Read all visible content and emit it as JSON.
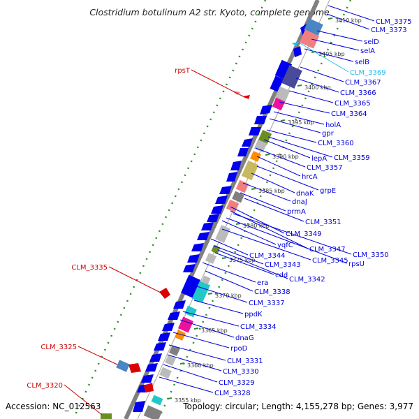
{
  "title": "Clostridium botulinum A2 str. Kyoto, complete genome",
  "footer": {
    "accession": "Accession: NC_012563",
    "topology": "Topology: circular; Length: 4,155,278 bp; Genes: 3,977"
  },
  "colors": {
    "forward_feature": "#0000ee",
    "reverse_feature": "#dd0000",
    "highlight_feature": "#22bbee",
    "backbone": "#808080",
    "tick": "#2e8b2e",
    "label_line_default": "#0000dd",
    "label_line_reverse": "#cc0000"
  },
  "ticks": [
    {
      "label": "3410 kbp"
    },
    {
      "label": "3405 kbp"
    },
    {
      "label": "3400 kbp"
    },
    {
      "label": "3395 kbp"
    },
    {
      "label": "3390 kbp"
    },
    {
      "label": "3385 kbp"
    },
    {
      "label": "3380 kbp"
    },
    {
      "label": "3375 kbp"
    },
    {
      "label": "3370 kbp"
    },
    {
      "label": "3365 kbp"
    },
    {
      "label": "3360 kbp"
    },
    {
      "label": "3355 kbp"
    }
  ],
  "gene_labels": [
    {
      "text": "CLM_3375",
      "strand": "forward"
    },
    {
      "text": "CLM_3373",
      "strand": "forward"
    },
    {
      "text": "selD",
      "strand": "forward"
    },
    {
      "text": "selA",
      "strand": "forward"
    },
    {
      "text": "selB",
      "strand": "forward"
    },
    {
      "text": "CLM_3369",
      "strand": "highlight"
    },
    {
      "text": "CLM_3367",
      "strand": "forward"
    },
    {
      "text": "CLM_3366",
      "strand": "forward"
    },
    {
      "text": "CLM_3365",
      "strand": "forward"
    },
    {
      "text": "CLM_3364",
      "strand": "forward"
    },
    {
      "text": "holA",
      "strand": "forward"
    },
    {
      "text": "gpr",
      "strand": "forward"
    },
    {
      "text": "CLM_3360",
      "strand": "forward"
    },
    {
      "text": "lepA",
      "strand": "forward"
    },
    {
      "text": "CLM_3359",
      "strand": "forward"
    },
    {
      "text": "hrcA",
      "strand": "forward"
    },
    {
      "text": "CLM_3357",
      "strand": "forward"
    },
    {
      "text": "dnaK",
      "strand": "forward"
    },
    {
      "text": "grpE",
      "strand": "forward"
    },
    {
      "text": "dnaJ",
      "strand": "forward"
    },
    {
      "text": "prmA",
      "strand": "forward"
    },
    {
      "text": "CLM_3351",
      "strand": "forward"
    },
    {
      "text": "CLM_3349",
      "strand": "forward"
    },
    {
      "text": "yqfC",
      "strand": "forward"
    },
    {
      "text": "CLM_3347",
      "strand": "forward"
    },
    {
      "text": "CLM_3350",
      "strand": "forward"
    },
    {
      "text": "CLM_3344",
      "strand": "forward"
    },
    {
      "text": "CLM_3345",
      "strand": "forward"
    },
    {
      "text": "rpsU",
      "strand": "forward"
    },
    {
      "text": "CLM_3343",
      "strand": "forward"
    },
    {
      "text": "cdd",
      "strand": "forward"
    },
    {
      "text": "CLM_3342",
      "strand": "forward"
    },
    {
      "text": "era",
      "strand": "forward"
    },
    {
      "text": "CLM_3338",
      "strand": "forward"
    },
    {
      "text": "CLM_3337",
      "strand": "forward"
    },
    {
      "text": "ppdK",
      "strand": "forward"
    },
    {
      "text": "CLM_3334",
      "strand": "forward"
    },
    {
      "text": "dnaG",
      "strand": "forward"
    },
    {
      "text": "rpoD",
      "strand": "forward"
    },
    {
      "text": "CLM_3331",
      "strand": "forward"
    },
    {
      "text": "CLM_3330",
      "strand": "forward"
    },
    {
      "text": "CLM_3329",
      "strand": "forward"
    },
    {
      "text": "CLM_3328",
      "strand": "forward"
    },
    {
      "text": "rpsT",
      "strand": "reverse"
    },
    {
      "text": "CLM_3335",
      "strand": "reverse"
    },
    {
      "text": "CLM_3325",
      "strand": "reverse"
    },
    {
      "text": "CLM_3320",
      "strand": "reverse"
    }
  ]
}
